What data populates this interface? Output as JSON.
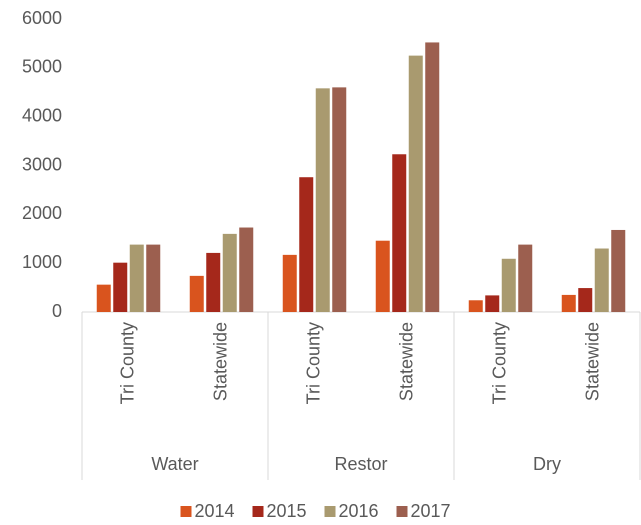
{
  "chart_data": {
    "type": "bar",
    "categories": [
      "Tri County",
      "Statewide",
      "Tri County",
      "Statewide",
      "Tri County",
      "Statewide"
    ],
    "groups": [
      "Water",
      "Restor",
      "Dry"
    ],
    "series": [
      {
        "name": "2014",
        "color": "#d9541e",
        "values": [
          560,
          740,
          1170,
          1460,
          240,
          350
        ]
      },
      {
        "name": "2015",
        "color": "#a5281b",
        "values": [
          1010,
          1210,
          2760,
          3230,
          340,
          490
        ]
      },
      {
        "name": "2016",
        "color": "#a99a6f",
        "values": [
          1380,
          1600,
          4580,
          5250,
          1090,
          1300
        ]
      },
      {
        "name": "2017",
        "color": "#9c5f4f",
        "values": [
          1380,
          1730,
          4600,
          5520,
          1380,
          1680
        ]
      }
    ],
    "ylim": [
      0,
      6000
    ],
    "yticks": [
      0,
      1000,
      2000,
      3000,
      4000,
      5000,
      6000
    ],
    "legend": "bottom"
  }
}
